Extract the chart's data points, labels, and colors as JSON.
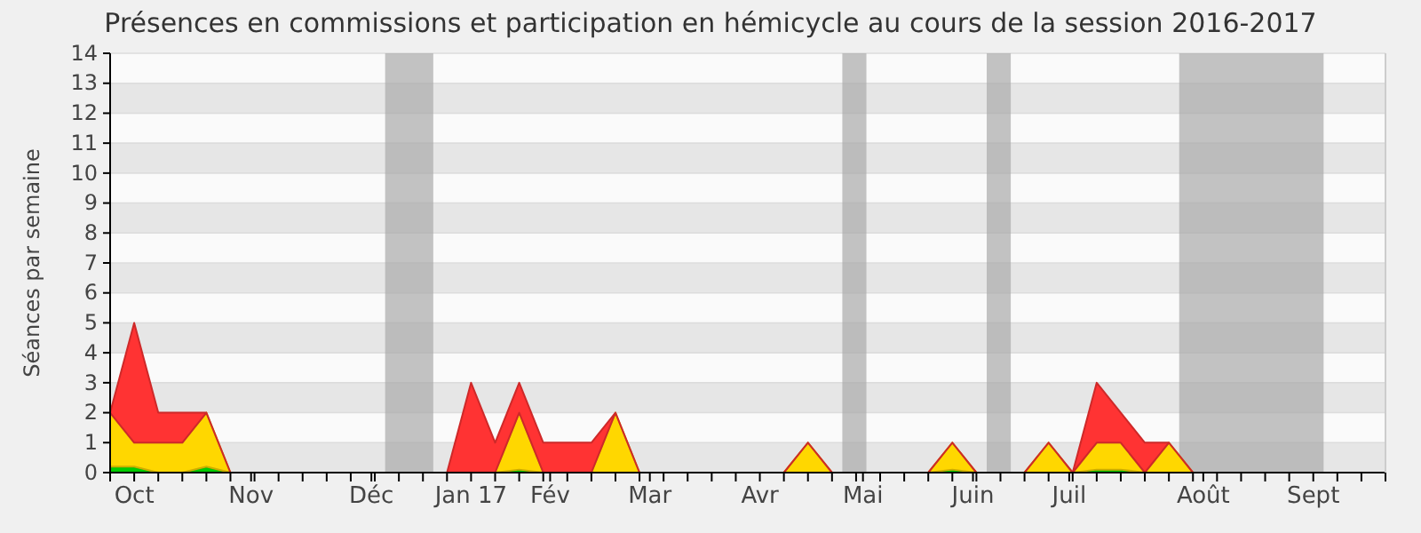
{
  "chart_data": {
    "type": "area",
    "stacked": true,
    "title": "Présences en commissions et participation en hémicycle au cours de la session 2016-2017",
    "ylabel": "Séances par semaine",
    "x": [
      "2016-09-26",
      "2016-10-03",
      "2016-10-10",
      "2016-10-17",
      "2016-10-24",
      "2016-10-31",
      "2016-11-07",
      "2016-11-14",
      "2016-11-21",
      "2016-11-28",
      "2016-12-05",
      "2016-12-12",
      "2016-12-19",
      "2016-12-26",
      "2017-01-02",
      "2017-01-09",
      "2017-01-16",
      "2017-01-23",
      "2017-01-30",
      "2017-02-06",
      "2017-02-13",
      "2017-02-20",
      "2017-02-27",
      "2017-03-06",
      "2017-03-13",
      "2017-03-20",
      "2017-03-27",
      "2017-04-03",
      "2017-04-10",
      "2017-04-17",
      "2017-04-24",
      "2017-05-01",
      "2017-05-08",
      "2017-05-15",
      "2017-05-22",
      "2017-05-29",
      "2017-06-05",
      "2017-06-12",
      "2017-06-19",
      "2017-06-26",
      "2017-07-03",
      "2017-07-10",
      "2017-07-17",
      "2017-07-24",
      "2017-07-31",
      "2017-08-07",
      "2017-08-14",
      "2017-08-21",
      "2017-08-28",
      "2017-09-04",
      "2017-09-11",
      "2017-09-18",
      "2017-09-25"
    ],
    "series": [
      {
        "color": "#00cc00",
        "values": [
          0.2,
          0.2,
          0,
          0,
          0.2,
          0,
          0,
          0,
          0,
          0,
          0,
          0,
          0,
          0,
          0,
          0,
          0,
          0.1,
          0,
          0,
          0,
          0,
          0,
          0,
          0,
          0,
          0,
          0,
          0,
          0,
          0,
          0,
          0,
          0,
          0,
          0.1,
          0,
          0,
          0,
          0,
          0,
          0.1,
          0.1,
          0,
          0,
          0,
          0,
          0,
          0,
          0,
          0,
          0,
          0
        ]
      },
      {
        "color": "#ffd700",
        "values": [
          1.8,
          0.8,
          1,
          1,
          1.8,
          0,
          0,
          0,
          0,
          0,
          0,
          0,
          0,
          0,
          0,
          0,
          0,
          1.9,
          0,
          0,
          0,
          2,
          0,
          0,
          0,
          0,
          0,
          0,
          0,
          1,
          0,
          0,
          0,
          0,
          0,
          0.9,
          0,
          0,
          0,
          1,
          0,
          0.9,
          0.9,
          0,
          1,
          0,
          0,
          0,
          0,
          0,
          0,
          0,
          0
        ]
      },
      {
        "color": "#ff3333",
        "values": [
          0,
          4,
          1,
          1,
          0,
          0,
          0,
          0,
          0,
          0,
          0,
          0,
          0,
          0,
          0,
          3,
          1,
          1,
          1,
          1,
          1,
          0,
          0,
          0,
          0,
          0,
          0,
          0,
          0,
          0,
          0,
          0,
          0,
          0,
          0,
          0,
          0,
          0,
          0,
          0,
          0,
          2,
          1,
          1,
          0,
          0,
          0,
          0,
          0,
          0,
          0,
          0,
          0
        ]
      }
    ],
    "xlim": [
      "2016-09-26",
      "2017-10-02"
    ],
    "xticks": [
      {
        "value": "2016-10-03",
        "label": "Oct"
      },
      {
        "value": "2016-11-06",
        "label": "Nov"
      },
      {
        "value": "2016-12-11",
        "label": "Déc"
      },
      {
        "value": "2017-01-09",
        "label": "Jan 17"
      },
      {
        "value": "2017-02-01",
        "label": "Fév"
      },
      {
        "value": "2017-03-02",
        "label": "Mar"
      },
      {
        "value": "2017-04-03",
        "label": "Avr"
      },
      {
        "value": "2017-05-03",
        "label": "Mai"
      },
      {
        "value": "2017-06-04",
        "label": "Juin"
      },
      {
        "value": "2017-07-02",
        "label": "Juil"
      },
      {
        "value": "2017-08-10",
        "label": "Août"
      },
      {
        "value": "2017-09-11",
        "label": "Sept"
      },
      {
        "value": "2016-09-26",
        "label": null
      },
      {
        "value": "2016-10-10",
        "label": null
      },
      {
        "value": "2016-10-17",
        "label": null
      },
      {
        "value": "2016-10-24",
        "label": null
      },
      {
        "value": "2016-10-31",
        "label": null
      },
      {
        "value": "2016-11-07",
        "label": null
      },
      {
        "value": "2016-11-14",
        "label": null
      },
      {
        "value": "2016-11-21",
        "label": null
      },
      {
        "value": "2016-11-28",
        "label": null
      },
      {
        "value": "2016-12-05",
        "label": null
      },
      {
        "value": "2016-12-12",
        "label": null
      },
      {
        "value": "2016-12-19",
        "label": null
      },
      {
        "value": "2016-12-26",
        "label": null
      },
      {
        "value": "2017-01-02",
        "label": null
      },
      {
        "value": "2017-01-16",
        "label": null
      },
      {
        "value": "2017-01-23",
        "label": null
      },
      {
        "value": "2017-01-30",
        "label": null
      },
      {
        "value": "2017-02-06",
        "label": null
      },
      {
        "value": "2017-02-13",
        "label": null
      },
      {
        "value": "2017-02-20",
        "label": null
      },
      {
        "value": "2017-02-27",
        "label": null
      },
      {
        "value": "2017-03-06",
        "label": null
      },
      {
        "value": "2017-03-13",
        "label": null
      },
      {
        "value": "2017-03-20",
        "label": null
      },
      {
        "value": "2017-03-27",
        "label": null
      },
      {
        "value": "2017-04-10",
        "label": null
      },
      {
        "value": "2017-04-17",
        "label": null
      },
      {
        "value": "2017-04-24",
        "label": null
      },
      {
        "value": "2017-05-01",
        "label": null
      },
      {
        "value": "2017-05-08",
        "label": null
      },
      {
        "value": "2017-05-15",
        "label": null
      },
      {
        "value": "2017-05-22",
        "label": null
      },
      {
        "value": "2017-05-29",
        "label": null
      },
      {
        "value": "2017-06-05",
        "label": null
      },
      {
        "value": "2017-06-12",
        "label": null
      },
      {
        "value": "2017-06-19",
        "label": null
      },
      {
        "value": "2017-06-26",
        "label": null
      },
      {
        "value": "2017-07-03",
        "label": null
      },
      {
        "value": "2017-07-10",
        "label": null
      },
      {
        "value": "2017-07-17",
        "label": null
      },
      {
        "value": "2017-07-24",
        "label": null
      },
      {
        "value": "2017-07-31",
        "label": null
      },
      {
        "value": "2017-08-07",
        "label": null
      },
      {
        "value": "2017-08-14",
        "label": null
      },
      {
        "value": "2017-08-21",
        "label": null
      },
      {
        "value": "2017-08-28",
        "label": null
      },
      {
        "value": "2017-09-04",
        "label": null
      },
      {
        "value": "2017-09-18",
        "label": null
      },
      {
        "value": "2017-09-25",
        "label": null
      },
      {
        "value": "2017-10-02",
        "label": null
      }
    ],
    "ylim": [
      0,
      14
    ],
    "yticks": [
      0,
      1,
      2,
      3,
      4,
      5,
      6,
      7,
      8,
      9,
      10,
      11,
      12,
      13,
      14
    ],
    "grid": "y",
    "bands": [
      {
        "axis": "x",
        "from": "2016-12-15",
        "to": "2016-12-29",
        "color": "#aaaaaa"
      },
      {
        "axis": "x",
        "from": "2017-04-27",
        "to": "2017-05-04",
        "color": "#aaaaaa"
      },
      {
        "axis": "x",
        "from": "2017-06-08",
        "to": "2017-06-15",
        "color": "#aaaaaa"
      },
      {
        "axis": "x",
        "from": "2017-08-03",
        "to": "2017-09-14",
        "color": "#aaaaaa"
      }
    ]
  }
}
